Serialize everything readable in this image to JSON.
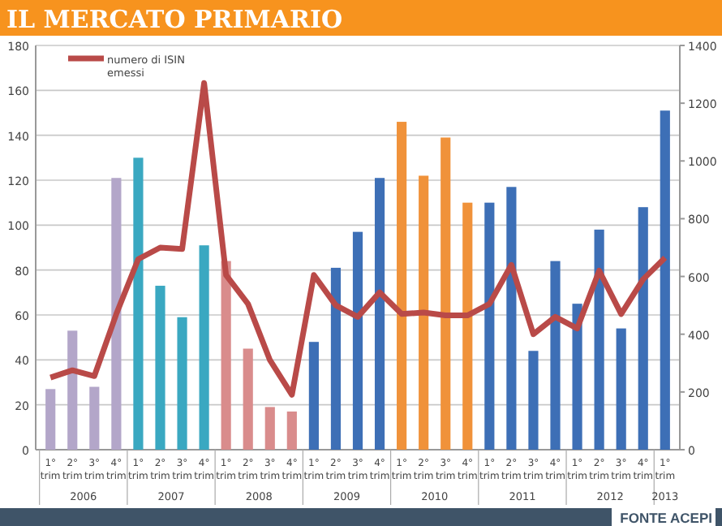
{
  "chart_data": {
    "type": "bar",
    "title": "IL MERCATO PRIMARIO",
    "categories": [
      "1° trim",
      "2° trim",
      "3° trim",
      "4° trim",
      "1° trim",
      "2° trim",
      "3° trim",
      "4° trim",
      "1° trim",
      "2° trim",
      "3° trim",
      "4° trim",
      "1° trim",
      "2° trim",
      "3° trim",
      "4° trim",
      "1° trim",
      "2° trim",
      "3° trim",
      "4° trim",
      "1° trim",
      "2° trim",
      "3° trim",
      "4° trim",
      "1° trim",
      "2° trim",
      "3° trim",
      "4° trim",
      "1° trim"
    ],
    "series": [
      {
        "colors": [
          "#b3a6c9",
          "#b3a6c9",
          "#b3a6c9",
          "#b3a6c9",
          "#3aa8c1",
          "#3aa8c1",
          "#3aa8c1",
          "#3aa8c1",
          "#d98c8c",
          "#d98c8c",
          "#d98c8c",
          "#d98c8c",
          "#3d6fb6",
          "#3d6fb6",
          "#3d6fb6",
          "#3d6fb6",
          "#f0923a",
          "#f0923a",
          "#f0923a",
          "#f0923a",
          "#3d6fb6",
          "#3d6fb6",
          "#3d6fb6",
          "#3d6fb6",
          "#3d6fb6",
          "#3d6fb6",
          "#3d6fb6",
          "#3d6fb6",
          "#3d6fb6"
        ],
        "values": [
          27,
          53,
          28,
          121,
          130,
          73,
          59,
          91,
          84,
          45,
          19,
          17,
          48,
          81,
          97,
          121,
          146,
          122,
          139,
          110,
          110,
          117,
          44,
          84,
          65,
          98,
          54,
          108,
          151
        ]
      },
      {
        "type": "line",
        "name": "numero di ISIN emessi",
        "color": "#b94a48",
        "axis": "y2",
        "values": [
          250,
          275,
          255,
          470,
          660,
          700,
          695,
          1270,
          605,
          505,
          310,
          190,
          605,
          500,
          460,
          545,
          470,
          475,
          465,
          465,
          505,
          640,
          400,
          460,
          420,
          620,
          470,
          590,
          665
        ]
      }
    ],
    "ylim": [
      0,
      180
    ],
    "yticks": [
      0,
      20,
      40,
      60,
      80,
      100,
      120,
      140,
      160,
      180
    ],
    "y2lim": [
      0,
      1400
    ],
    "y2ticks": [
      0,
      200,
      400,
      600,
      800,
      1000,
      1200,
      1400
    ],
    "grid": "y",
    "legend": "top left",
    "marker": "none",
    "annotations": [
      "2006",
      "2007",
      "2008",
      "2009",
      "2010",
      "2011",
      "2012",
      "2013",
      "FONTE ACEPI"
    ]
  }
}
